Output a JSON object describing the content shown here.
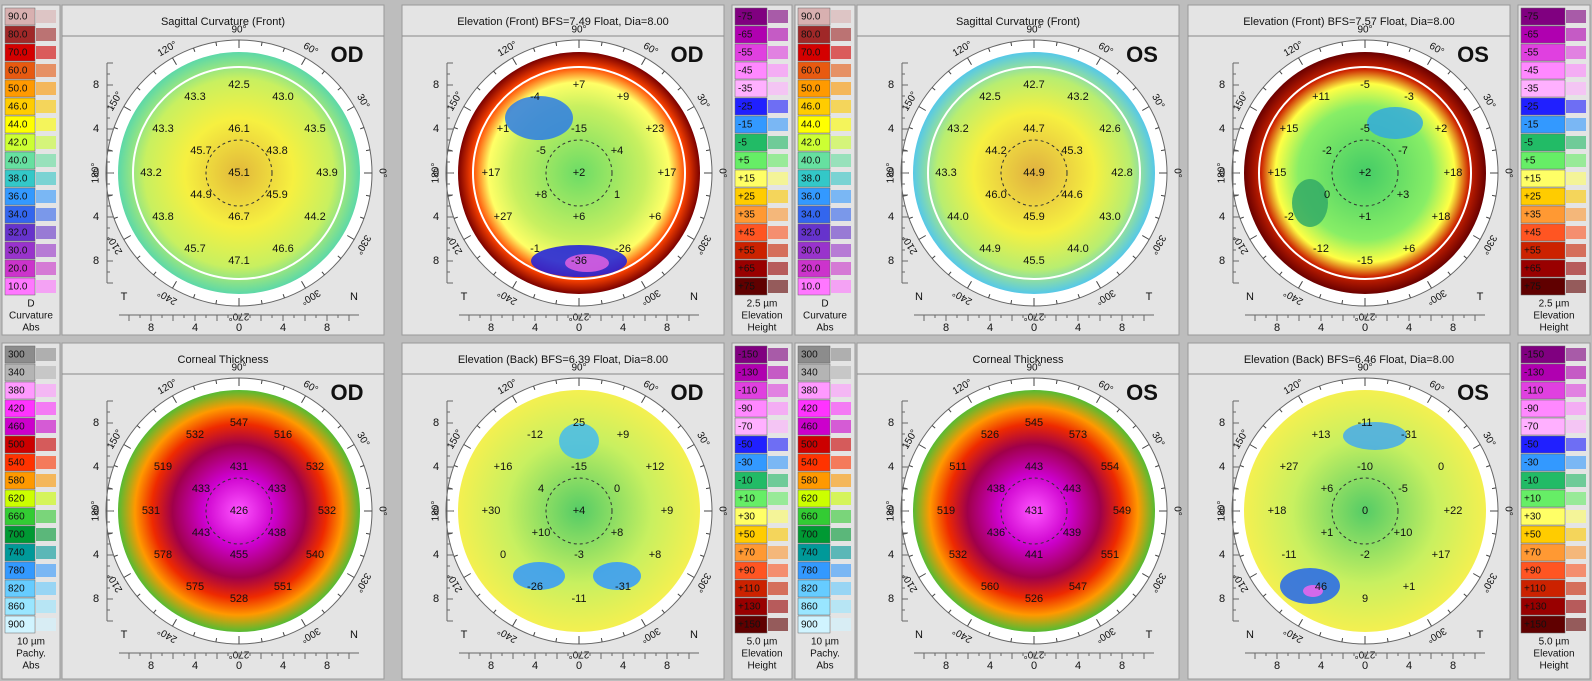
{
  "angles": [
    "90°",
    "120°",
    "60°",
    "150°",
    "30°",
    "180°",
    "0°",
    "210°",
    "330°",
    "240°",
    "300°",
    "270°"
  ],
  "axis_ticks": [
    "8",
    "4",
    "0",
    "4",
    "8"
  ],
  "scales": [
    {
      "labels": [
        "90.0",
        "80.0",
        "70.0",
        "60.0",
        "50.0",
        "46.0",
        "44.0",
        "42.0",
        "40.0",
        "38.0",
        "36.0",
        "34.0",
        "32.0",
        "30.0",
        "20.0",
        "10.0"
      ],
      "colors": [
        "#d8b0b0",
        "#a02828",
        "#d40000",
        "#e85a10",
        "#ff9a00",
        "#ffcc00",
        "#ffff00",
        "#ccff33",
        "#66e0a0",
        "#33c8c8",
        "#3399ff",
        "#3366ee",
        "#6633cc",
        "#9933cc",
        "#cc33cc",
        "#ff77ff"
      ],
      "unit": "D",
      "name": "Curvature",
      "kind": "Abs"
    },
    {
      "labels": [
        "-75",
        "-65",
        "-55",
        "-45",
        "-35",
        "-25",
        "-15",
        "-5",
        "+5",
        "+15",
        "+25",
        "+35",
        "+45",
        "+55",
        "+65",
        "+75"
      ],
      "colors": [
        "#800080",
        "#b000b0",
        "#e040e0",
        "#ff88ff",
        "#ffb0ff",
        "#2020ff",
        "#3399ff",
        "#22bb66",
        "#66ee66",
        "#ffff66",
        "#ffcc00",
        "#ff9933",
        "#ff5522",
        "#cc2200",
        "#990000",
        "#600000"
      ],
      "unit": "2.5 µm",
      "name": "Elevation",
      "kind": "Height"
    },
    {
      "labels": [
        "300",
        "340",
        "380",
        "420",
        "460",
        "500",
        "540",
        "580",
        "620",
        "660",
        "700",
        "740",
        "780",
        "820",
        "860",
        "900"
      ],
      "colors": [
        "#8c8c8c",
        "#b4b4b4",
        "#ff99ff",
        "#ff33ff",
        "#cc00cc",
        "#cc0000",
        "#ff3300",
        "#ff9900",
        "#ccff00",
        "#33cc33",
        "#009933",
        "#009999",
        "#3399ff",
        "#66ccff",
        "#99e6ff",
        "#d0f4ff"
      ],
      "unit": "10 µm",
      "name": "Pachy.",
      "kind": "Abs"
    },
    {
      "labels": [
        "-150",
        "-130",
        "-110",
        "-90",
        "-70",
        "-50",
        "-30",
        "-10",
        "+10",
        "+30",
        "+50",
        "+70",
        "+90",
        "+110",
        "+130",
        "+150"
      ],
      "colors": [
        "#800080",
        "#b000b0",
        "#e040e0",
        "#ff88ff",
        "#ffb0ff",
        "#2020ff",
        "#3399ff",
        "#22bb66",
        "#66ee66",
        "#ffff66",
        "#ffcc00",
        "#ff9933",
        "#ff5522",
        "#cc2200",
        "#990000",
        "#600000"
      ],
      "unit": "5.0 µm",
      "name": "Elevation",
      "kind": "Height"
    }
  ],
  "panels": [
    {
      "title": "Sagittal Curvature (Front)",
      "eye": "OD",
      "left": "T",
      "right": "N",
      "values": [
        "42.5",
        "43.3",
        "43.0",
        "43.3",
        "46.1",
        "43.5",
        "45.7",
        "43.8",
        "43.2",
        "45.1",
        "43.9",
        "44.9",
        "45.9",
        "43.8",
        "46.7",
        "44.2",
        "45.7",
        "46.6",
        "47.1"
      ]
    },
    {
      "title": "Elevation (Front)  BFS=7.49 Float, Dia=8.00",
      "eye": "OD",
      "left": "T",
      "right": "N",
      "values": [
        "+7",
        "-4",
        "+9",
        "+1",
        "-15",
        "+23",
        "-5",
        "+4",
        "+17",
        "+2",
        "+17",
        "+8",
        "1",
        "+27",
        "+6",
        "+6",
        "-1",
        "-26",
        "-36"
      ]
    },
    {
      "title": "Sagittal Curvature (Front)",
      "eye": "OS",
      "left": "N",
      "right": "T",
      "values": [
        "42.7",
        "42.5",
        "43.2",
        "43.2",
        "44.7",
        "42.6",
        "44.2",
        "45.3",
        "43.3",
        "44.9",
        "42.8",
        "46.0",
        "44.6",
        "44.0",
        "45.9",
        "43.0",
        "44.9",
        "44.0",
        "45.5"
      ]
    },
    {
      "title": "Elevation (Front)  BFS=7.57 Float, Dia=8.00",
      "eye": "OS",
      "left": "N",
      "right": "T",
      "values": [
        "-5",
        "+11",
        "-3",
        "+15",
        "-5",
        "+2",
        "-2",
        "-7",
        "+15",
        "+2",
        "+18",
        "0",
        "+3",
        "-2",
        "+1",
        "+18",
        "-12",
        "+6",
        "-15"
      ]
    },
    {
      "title": "Corneal Thickness",
      "eye": "OD",
      "left": "T",
      "right": "N",
      "values": [
        "547",
        "532",
        "516",
        "519",
        "431",
        "532",
        "433",
        "433",
        "531",
        "426",
        "532",
        "443",
        "438",
        "578",
        "455",
        "540",
        "575",
        "551",
        "528"
      ]
    },
    {
      "title": "Elevation (Back)  BFS=6.39 Float, Dia=8.00",
      "eye": "OD",
      "left": "T",
      "right": "N",
      "values": [
        "25",
        "-12",
        "+9",
        "+16",
        "-15",
        "+12",
        "4",
        "0",
        "+30",
        "+4",
        "+9",
        "+10",
        "+8",
        "0",
        "-3",
        "+8",
        "-26",
        "-31",
        "-11"
      ]
    },
    {
      "title": "Corneal Thickness",
      "eye": "OS",
      "left": "N",
      "right": "T",
      "values": [
        "545",
        "526",
        "573",
        "511",
        "443",
        "554",
        "438",
        "443",
        "519",
        "431",
        "549",
        "436",
        "439",
        "532",
        "441",
        "551",
        "560",
        "547",
        "526"
      ]
    },
    {
      "title": "Elevation (Back)  BFS=6.46 Float, Dia=8.00",
      "eye": "OS",
      "left": "N",
      "right": "T",
      "values": [
        "-11",
        "+13",
        "-31",
        "+27",
        "-10",
        "0",
        "+6",
        "-5",
        "+18",
        "0",
        "+22",
        "+1",
        "+10",
        "-11",
        "-2",
        "+17",
        "46",
        "+1",
        "9"
      ]
    }
  ]
}
